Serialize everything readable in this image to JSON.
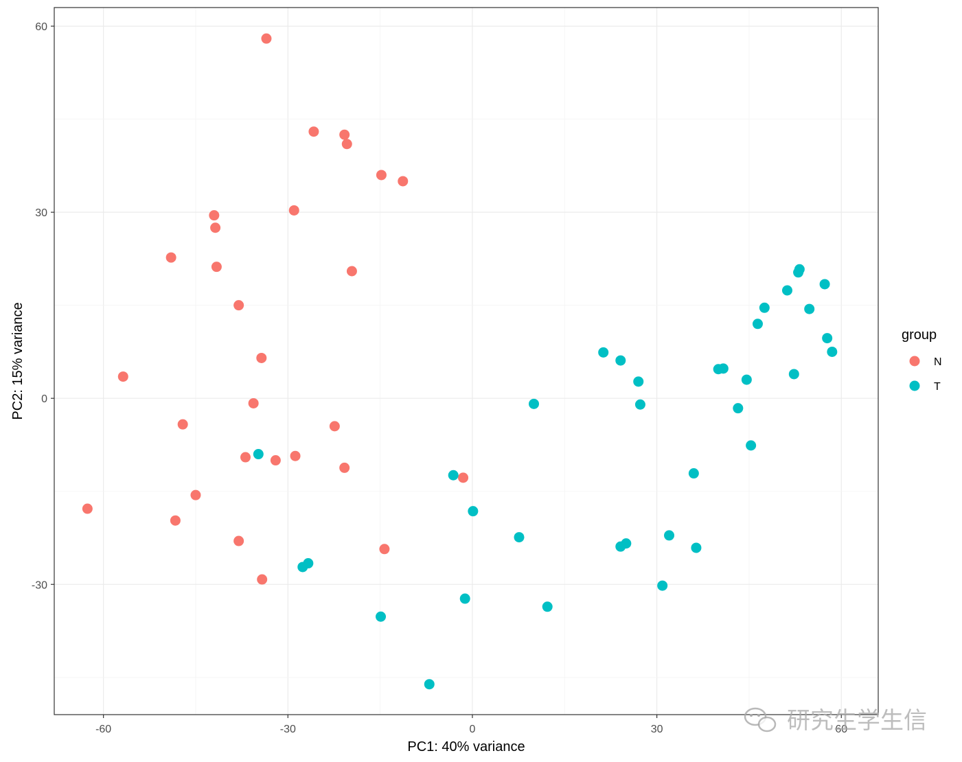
{
  "chart_data": {
    "type": "scatter",
    "xlabel": "PC1: 40% variance",
    "ylabel": "PC2: 15% variance",
    "xlim": [
      -68,
      66
    ],
    "ylim": [
      -51,
      63
    ],
    "x_ticks": [
      -60,
      -30,
      0,
      30,
      60
    ],
    "y_ticks": [
      -30,
      0,
      30,
      60
    ],
    "x_tick_labels": [
      "-60",
      "-30",
      "0",
      "30",
      "60"
    ],
    "y_tick_labels": [
      "-30",
      "0",
      "30",
      "60"
    ],
    "grid": true,
    "legend": {
      "title": "group",
      "position": "right"
    },
    "series": [
      {
        "name": "N",
        "color": "#F8766D",
        "points": [
          [
            -33.5,
            58.0
          ],
          [
            -25.8,
            43.0
          ],
          [
            -20.8,
            42.5
          ],
          [
            -20.4,
            41.0
          ],
          [
            -14.8,
            36.0
          ],
          [
            -11.3,
            35.0
          ],
          [
            -29.0,
            30.3
          ],
          [
            -42.0,
            29.5
          ],
          [
            -41.8,
            27.5
          ],
          [
            -49.0,
            22.7
          ],
          [
            -41.6,
            21.2
          ],
          [
            -19.6,
            20.5
          ],
          [
            -38.0,
            15.0
          ],
          [
            -34.3,
            6.5
          ],
          [
            -56.8,
            3.5
          ],
          [
            -35.6,
            -0.8
          ],
          [
            -47.1,
            -4.2
          ],
          [
            -22.4,
            -4.5
          ],
          [
            -36.9,
            -9.5
          ],
          [
            -28.8,
            -9.3
          ],
          [
            -32.0,
            -10.0
          ],
          [
            -20.8,
            -11.2
          ],
          [
            -1.5,
            -12.8
          ],
          [
            -45.0,
            -15.6
          ],
          [
            -62.6,
            -17.8
          ],
          [
            -48.3,
            -19.7
          ],
          [
            -38.0,
            -23.0
          ],
          [
            -14.3,
            -24.3
          ],
          [
            -34.2,
            -29.2
          ]
        ]
      },
      {
        "name": "T",
        "color": "#00BFC4",
        "points": [
          [
            53.2,
            20.8
          ],
          [
            53.0,
            20.3
          ],
          [
            57.3,
            18.4
          ],
          [
            51.2,
            17.4
          ],
          [
            47.5,
            14.6
          ],
          [
            54.8,
            14.4
          ],
          [
            46.4,
            12.0
          ],
          [
            57.7,
            9.7
          ],
          [
            58.5,
            7.5
          ],
          [
            21.3,
            7.4
          ],
          [
            24.1,
            6.1
          ],
          [
            40.0,
            4.7
          ],
          [
            40.8,
            4.8
          ],
          [
            52.3,
            3.9
          ],
          [
            44.6,
            3.0
          ],
          [
            27.0,
            2.7
          ],
          [
            10.0,
            -0.9
          ],
          [
            27.3,
            -1.0
          ],
          [
            43.2,
            -1.6
          ],
          [
            45.3,
            -7.6
          ],
          [
            -34.8,
            -9.0
          ],
          [
            36.0,
            -12.1
          ],
          [
            -3.1,
            -12.4
          ],
          [
            0.1,
            -18.2
          ],
          [
            7.6,
            -22.4
          ],
          [
            32.0,
            -22.1
          ],
          [
            24.1,
            -23.9
          ],
          [
            25.0,
            -23.4
          ],
          [
            36.4,
            -24.1
          ],
          [
            -27.6,
            -27.2
          ],
          [
            -26.7,
            -26.6
          ],
          [
            30.9,
            -30.2
          ],
          [
            -1.2,
            -32.3
          ],
          [
            12.2,
            -33.6
          ],
          [
            -14.9,
            -35.2
          ],
          [
            -7.0,
            -46.1
          ]
        ]
      }
    ]
  },
  "watermark": {
    "text": "研究生学生信",
    "icon": "wechat-bubble-icon"
  }
}
